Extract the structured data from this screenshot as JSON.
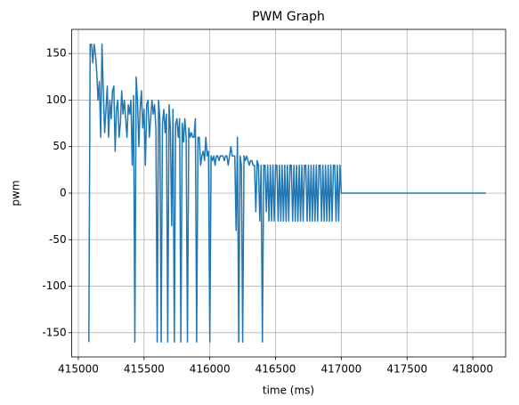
{
  "chart_data": {
    "type": "line",
    "title": "PWM Graph",
    "xlabel": "time (ms)",
    "ylabel": "pwm",
    "x": [
      415080,
      415090,
      415100,
      415110,
      415120,
      415130,
      415140,
      415150,
      415160,
      415170,
      415180,
      415190,
      415200,
      415210,
      415220,
      415230,
      415240,
      415250,
      415260,
      415270,
      415280,
      415290,
      415300,
      415310,
      415320,
      415330,
      415340,
      415350,
      415360,
      415370,
      415380,
      415390,
      415400,
      415410,
      415420,
      415430,
      415440,
      415450,
      415460,
      415470,
      415480,
      415490,
      415500,
      415510,
      415520,
      415530,
      415540,
      415550,
      415560,
      415570,
      415580,
      415590,
      415600,
      415610,
      415620,
      415630,
      415640,
      415650,
      415660,
      415670,
      415680,
      415690,
      415700,
      415710,
      415720,
      415730,
      415740,
      415750,
      415760,
      415770,
      415780,
      415790,
      415800,
      415810,
      415820,
      415830,
      415840,
      415850,
      415860,
      415870,
      415880,
      415890,
      415900,
      415910,
      415920,
      415930,
      415940,
      415950,
      415960,
      415970,
      415980,
      415990,
      416000,
      416010,
      416020,
      416030,
      416040,
      416050,
      416060,
      416070,
      416080,
      416090,
      416100,
      416110,
      416120,
      416130,
      416140,
      416150,
      416160,
      416170,
      416180,
      416190,
      416200,
      416210,
      416220,
      416230,
      416240,
      416250,
      416260,
      416270,
      416280,
      416290,
      416300,
      416310,
      416320,
      416330,
      416340,
      416350,
      416360,
      416370,
      416380,
      416390,
      416400,
      416410,
      416420,
      416430,
      416440,
      416450,
      416460,
      416470,
      416480,
      416490,
      416500,
      416510,
      416520,
      416530,
      416540,
      416550,
      416560,
      416570,
      416580,
      416590,
      416600,
      416610,
      416620,
      416630,
      416640,
      416650,
      416660,
      416670,
      416680,
      416690,
      416700,
      416710,
      416720,
      416730,
      416740,
      416750,
      416760,
      416770,
      416780,
      416790,
      416800,
      416810,
      416820,
      416830,
      416840,
      416850,
      416860,
      416870,
      416880,
      416890,
      416900,
      416910,
      416920,
      416930,
      416940,
      416950,
      416960,
      416970,
      416980,
      416990,
      417000,
      418100
    ],
    "series": [
      {
        "name": "pwm",
        "color": "#1f77b4",
        "values": [
          -160,
          160,
          160,
          140,
          160,
          150,
          130,
          100,
          120,
          60,
          160,
          110,
          65,
          90,
          115,
          60,
          100,
          80,
          110,
          115,
          45,
          90,
          100,
          60,
          75,
          110,
          85,
          100,
          80,
          60,
          95,
          85,
          100,
          30,
          105,
          -160,
          125,
          100,
          50,
          90,
          110,
          70,
          90,
          30,
          95,
          100,
          60,
          80,
          100,
          85,
          95,
          70,
          -160,
          100,
          80,
          -160,
          75,
          90,
          65,
          85,
          -160,
          95,
          70,
          -35,
          90,
          -160,
          75,
          80,
          60,
          80,
          -160,
          75,
          55,
          80,
          60,
          -160,
          70,
          60,
          65,
          60,
          60,
          80,
          -160,
          60,
          60,
          30,
          40,
          45,
          35,
          60,
          40,
          45,
          -160,
          40,
          35,
          40,
          30,
          40,
          40,
          35,
          40,
          40,
          40,
          35,
          40,
          40,
          30,
          40,
          50,
          40,
          40,
          40,
          -40,
          60,
          -160,
          40,
          30,
          -160,
          40,
          35,
          40,
          35,
          30,
          35,
          35,
          30,
          30,
          -20,
          35,
          30,
          -30,
          30,
          -160,
          30,
          30,
          -20,
          30,
          -30,
          30,
          -30,
          30,
          -30,
          30,
          30,
          -30,
          30,
          -30,
          30,
          -30,
          30,
          -30,
          30,
          -30,
          30,
          30,
          -30,
          30,
          -30,
          30,
          -30,
          30,
          -30,
          30,
          -30,
          30,
          30,
          -30,
          30,
          -30,
          30,
          -30,
          30,
          -30,
          30,
          -30,
          30,
          30,
          -30,
          30,
          -30,
          30,
          -30,
          30,
          -30,
          30,
          -30,
          30,
          30,
          -30,
          30,
          -30,
          30,
          0,
          0
        ]
      }
    ],
    "xlim": [
      414950,
      418250
    ],
    "xticks": [
      415000,
      415500,
      416000,
      416500,
      417000,
      417500,
      418000
    ],
    "ylim": [
      -176,
      176
    ],
    "yticks": [
      -150,
      -100,
      -50,
      0,
      50,
      100,
      150
    ],
    "grid": true
  }
}
